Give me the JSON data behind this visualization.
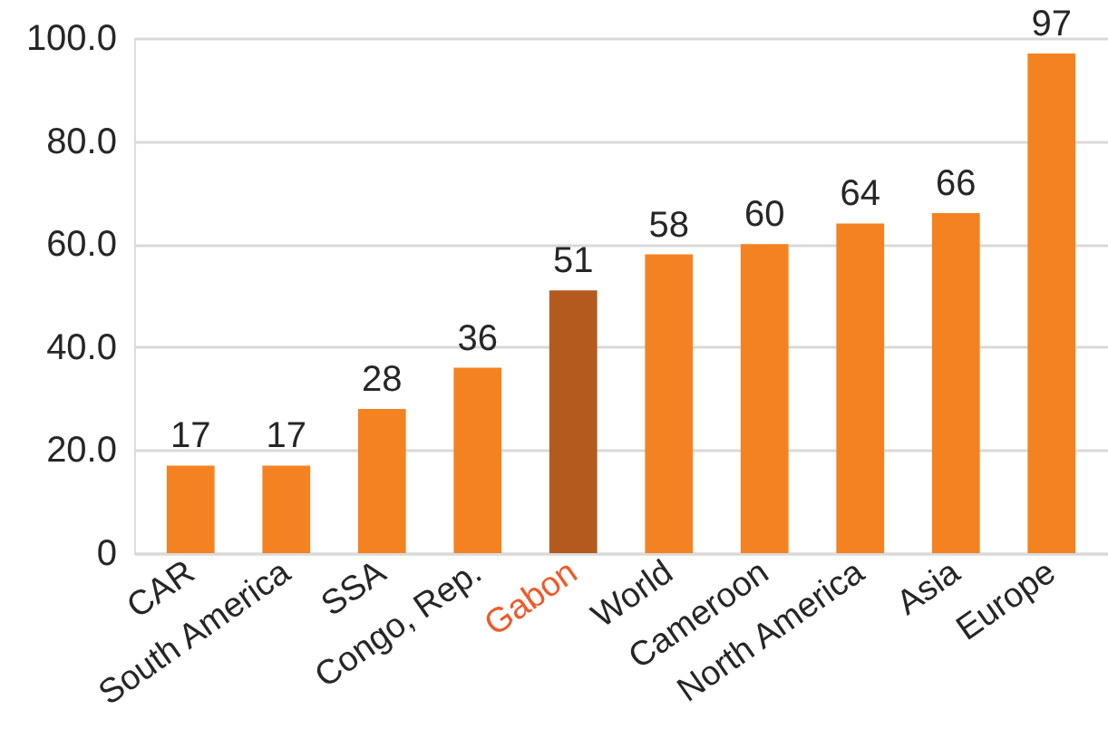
{
  "chart_data": {
    "type": "bar",
    "categories": [
      "CAR",
      "South America",
      "SSA",
      "Congo, Rep.",
      "Gabon",
      "World",
      "Cameroon",
      "North America",
      "Asia",
      "Europe"
    ],
    "values": [
      17,
      17,
      28,
      36,
      51,
      58,
      60,
      64,
      66,
      97
    ],
    "colors": [
      "#f58220",
      "#f58220",
      "#f58220",
      "#f58220",
      "#b35a1f",
      "#f58220",
      "#f58220",
      "#f58220",
      "#f58220",
      "#f58220"
    ],
    "ylim": [
      0,
      100
    ],
    "yticks": [
      0,
      {
        "value": 20,
        "label": "20.0"
      },
      {
        "value": 40,
        "label": "40.0"
      },
      {
        "value": 60,
        "label": "60.0"
      },
      {
        "value": 80,
        "label": "80.0"
      },
      {
        "value": 100,
        "label": "100.0"
      }
    ],
    "grid": "y",
    "data_labels": true
  }
}
